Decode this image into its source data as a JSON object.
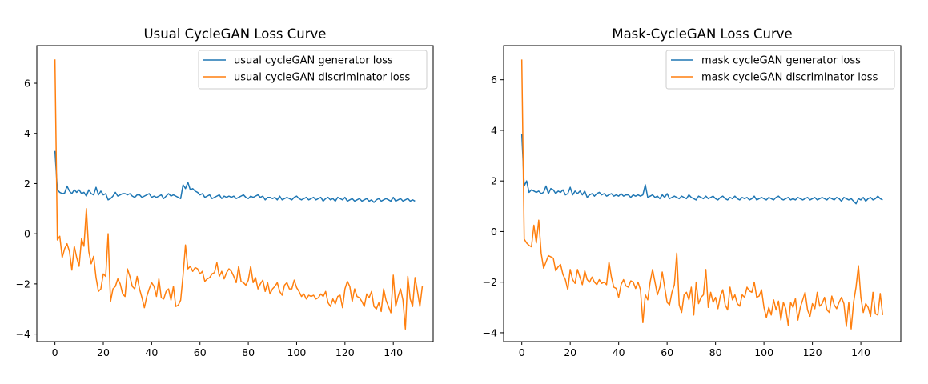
{
  "colors": {
    "generator": "#1f77b4",
    "discriminator": "#ff7f0e"
  },
  "chart_data": [
    {
      "type": "line",
      "title": "Usual CycleGAN Loss Curve",
      "xlabel": "",
      "ylabel": "",
      "xlim": [
        -7.5,
        156.5
      ],
      "ylim": [
        -4.3,
        7.5
      ],
      "xticks": [
        0,
        20,
        40,
        60,
        80,
        100,
        120,
        140
      ],
      "yticks": [
        -4,
        -2,
        0,
        2,
        4,
        6
      ],
      "legend_position": "top-right",
      "series": [
        {
          "name": "usual cycleGAN generator loss",
          "color": "#1f77b4",
          "x_start": 0,
          "values": [
            3.3,
            1.75,
            1.65,
            1.6,
            1.62,
            1.9,
            1.7,
            1.6,
            1.75,
            1.65,
            1.75,
            1.6,
            1.65,
            1.5,
            1.75,
            1.6,
            1.55,
            1.85,
            1.55,
            1.7,
            1.55,
            1.6,
            1.35,
            1.4,
            1.5,
            1.65,
            1.5,
            1.55,
            1.6,
            1.6,
            1.55,
            1.6,
            1.5,
            1.45,
            1.55,
            1.55,
            1.45,
            1.5,
            1.55,
            1.6,
            1.45,
            1.5,
            1.45,
            1.5,
            1.55,
            1.4,
            1.5,
            1.6,
            1.5,
            1.55,
            1.5,
            1.45,
            1.4,
            1.95,
            1.8,
            2.05,
            1.75,
            1.8,
            1.7,
            1.65,
            1.55,
            1.6,
            1.45,
            1.5,
            1.55,
            1.4,
            1.45,
            1.5,
            1.55,
            1.4,
            1.5,
            1.45,
            1.5,
            1.45,
            1.5,
            1.4,
            1.45,
            1.5,
            1.55,
            1.45,
            1.4,
            1.5,
            1.45,
            1.5,
            1.55,
            1.45,
            1.5,
            1.35,
            1.45,
            1.45,
            1.4,
            1.45,
            1.35,
            1.5,
            1.35,
            1.4,
            1.45,
            1.4,
            1.35,
            1.45,
            1.5,
            1.4,
            1.35,
            1.4,
            1.45,
            1.35,
            1.4,
            1.45,
            1.35,
            1.4,
            1.45,
            1.3,
            1.4,
            1.45,
            1.35,
            1.4,
            1.3,
            1.45,
            1.4,
            1.35,
            1.45,
            1.3,
            1.35,
            1.4,
            1.3,
            1.35,
            1.4,
            1.3,
            1.35,
            1.4,
            1.3,
            1.35,
            1.25,
            1.35,
            1.4,
            1.3,
            1.35,
            1.4,
            1.35,
            1.3,
            1.45,
            1.3,
            1.35,
            1.4,
            1.3,
            1.35,
            1.4,
            1.3,
            1.35,
            1.3
          ]
        },
        {
          "name": "usual cycleGAN discriminator loss",
          "color": "#ff7f0e",
          "x_start": 0,
          "values": [
            6.95,
            -0.25,
            -0.1,
            -0.95,
            -0.6,
            -0.4,
            -0.7,
            -1.45,
            -0.5,
            -0.95,
            -1.3,
            -0.2,
            -0.5,
            1.0,
            -0.7,
            -1.2,
            -0.9,
            -1.75,
            -2.3,
            -2.2,
            -1.6,
            -1.7,
            0.0,
            -2.7,
            -2.2,
            -2.1,
            -1.8,
            -2.0,
            -2.4,
            -2.5,
            -1.4,
            -1.7,
            -2.1,
            -2.2,
            -1.7,
            -2.2,
            -2.55,
            -2.95,
            -2.5,
            -2.2,
            -1.95,
            -2.1,
            -2.5,
            -1.8,
            -2.55,
            -2.6,
            -2.3,
            -2.2,
            -2.65,
            -2.1,
            -2.9,
            -2.85,
            -2.65,
            -1.65,
            -0.45,
            -1.4,
            -1.3,
            -1.5,
            -1.35,
            -1.4,
            -1.6,
            -1.5,
            -1.9,
            -1.8,
            -1.75,
            -1.6,
            -1.55,
            -1.15,
            -1.7,
            -1.5,
            -1.8,
            -1.55,
            -1.4,
            -1.5,
            -1.7,
            -1.95,
            -1.3,
            -1.9,
            -1.95,
            -2.05,
            -1.85,
            -1.3,
            -1.95,
            -1.75,
            -2.2,
            -2.0,
            -1.85,
            -2.3,
            -1.95,
            -2.4,
            -2.2,
            -2.1,
            -1.95,
            -2.3,
            -2.45,
            -2.05,
            -1.95,
            -2.2,
            -2.2,
            -1.85,
            -2.15,
            -2.3,
            -2.5,
            -2.4,
            -2.6,
            -2.45,
            -2.5,
            -2.45,
            -2.6,
            -2.55,
            -2.4,
            -2.5,
            -2.3,
            -2.75,
            -2.9,
            -2.6,
            -2.8,
            -2.5,
            -2.45,
            -2.95,
            -2.2,
            -1.9,
            -2.1,
            -2.7,
            -2.2,
            -2.5,
            -2.55,
            -2.7,
            -2.9,
            -2.4,
            -2.55,
            -2.3,
            -2.9,
            -3.0,
            -2.75,
            -3.1,
            -2.2,
            -2.65,
            -2.9,
            -3.15,
            -1.65,
            -2.9,
            -2.5,
            -2.2,
            -2.65,
            -3.8,
            -1.7,
            -2.6,
            -2.9,
            -1.75,
            -2.3,
            -2.9,
            -2.1
          ]
        }
      ]
    },
    {
      "type": "line",
      "title": "Mask-CycleGAN Loss Curve",
      "xlabel": "",
      "ylabel": "",
      "xlim": [
        -7.5,
        156.5
      ],
      "ylim": [
        -4.35,
        7.35
      ],
      "xticks": [
        0,
        20,
        40,
        60,
        80,
        100,
        120,
        140
      ],
      "yticks": [
        -4,
        -2,
        0,
        2,
        4,
        6
      ],
      "legend_position": "top-right",
      "series": [
        {
          "name": "mask cycleGAN generator loss",
          "color": "#1f77b4",
          "x_start": 0,
          "values": [
            3.85,
            1.8,
            2.0,
            1.55,
            1.65,
            1.6,
            1.55,
            1.6,
            1.5,
            1.55,
            1.8,
            1.5,
            1.7,
            1.65,
            1.5,
            1.6,
            1.55,
            1.65,
            1.45,
            1.5,
            1.75,
            1.45,
            1.6,
            1.5,
            1.6,
            1.45,
            1.6,
            1.35,
            1.45,
            1.5,
            1.4,
            1.5,
            1.55,
            1.45,
            1.5,
            1.4,
            1.45,
            1.5,
            1.4,
            1.45,
            1.4,
            1.5,
            1.4,
            1.45,
            1.45,
            1.35,
            1.45,
            1.4,
            1.45,
            1.4,
            1.45,
            1.85,
            1.35,
            1.4,
            1.45,
            1.35,
            1.4,
            1.3,
            1.45,
            1.35,
            1.5,
            1.3,
            1.35,
            1.4,
            1.35,
            1.3,
            1.4,
            1.35,
            1.3,
            1.45,
            1.35,
            1.3,
            1.25,
            1.4,
            1.35,
            1.3,
            1.4,
            1.3,
            1.35,
            1.4,
            1.3,
            1.25,
            1.35,
            1.4,
            1.3,
            1.25,
            1.35,
            1.3,
            1.4,
            1.3,
            1.25,
            1.35,
            1.3,
            1.35,
            1.25,
            1.3,
            1.4,
            1.25,
            1.3,
            1.35,
            1.3,
            1.25,
            1.35,
            1.3,
            1.25,
            1.35,
            1.4,
            1.3,
            1.25,
            1.3,
            1.35,
            1.25,
            1.3,
            1.25,
            1.35,
            1.3,
            1.25,
            1.3,
            1.35,
            1.25,
            1.3,
            1.35,
            1.25,
            1.3,
            1.35,
            1.3,
            1.25,
            1.35,
            1.3,
            1.25,
            1.35,
            1.3,
            1.2,
            1.35,
            1.3,
            1.25,
            1.3,
            1.2,
            1.1,
            1.3,
            1.25,
            1.35,
            1.2,
            1.3,
            1.35,
            1.25,
            1.3,
            1.4,
            1.3,
            1.25
          ]
        },
        {
          "name": "mask cycleGAN discriminator loss",
          "color": "#ff7f0e",
          "x_start": 0,
          "values": [
            6.8,
            -0.3,
            -0.45,
            -0.55,
            -0.6,
            0.25,
            -0.45,
            0.45,
            -0.85,
            -1.45,
            -1.2,
            -0.95,
            -1.0,
            -1.05,
            -1.55,
            -1.4,
            -1.3,
            -1.7,
            -1.9,
            -2.3,
            -1.5,
            -1.9,
            -2.05,
            -1.5,
            -1.8,
            -2.1,
            -1.55,
            -1.9,
            -2.0,
            -1.8,
            -2.0,
            -2.1,
            -1.9,
            -2.05,
            -2.0,
            -2.1,
            -1.2,
            -1.8,
            -2.2,
            -2.25,
            -2.6,
            -2.1,
            -1.9,
            -2.15,
            -2.2,
            -1.95,
            -2.0,
            -2.25,
            -2.0,
            -2.3,
            -3.6,
            -2.5,
            -2.7,
            -2.0,
            -1.5,
            -2.0,
            -2.5,
            -2.2,
            -1.6,
            -2.2,
            -2.8,
            -2.9,
            -2.4,
            -2.1,
            -0.85,
            -2.9,
            -3.2,
            -2.5,
            -2.4,
            -2.7,
            -2.2,
            -3.3,
            -2.0,
            -2.85,
            -2.6,
            -2.5,
            -1.5,
            -3.0,
            -2.4,
            -2.8,
            -2.6,
            -3.05,
            -2.55,
            -2.3,
            -2.9,
            -3.1,
            -2.2,
            -2.7,
            -2.5,
            -2.85,
            -2.95,
            -2.5,
            -2.6,
            -2.2,
            -2.35,
            -2.4,
            -2.0,
            -2.6,
            -2.55,
            -2.3,
            -3.0,
            -3.4,
            -3.0,
            -3.3,
            -2.7,
            -3.1,
            -2.75,
            -3.5,
            -2.8,
            -3.05,
            -3.7,
            -2.8,
            -3.0,
            -2.65,
            -3.5,
            -3.0,
            -2.7,
            -2.4,
            -3.1,
            -3.35,
            -2.85,
            -3.05,
            -2.4,
            -2.95,
            -2.85,
            -2.6,
            -3.1,
            -3.2,
            -2.55,
            -2.9,
            -3.05,
            -2.8,
            -2.6,
            -2.85,
            -3.75,
            -2.8,
            -3.85,
            -2.8,
            -2.2,
            -1.35,
            -2.6,
            -3.2,
            -2.85,
            -3.0,
            -3.35,
            -2.4,
            -3.25,
            -3.3,
            -2.45,
            -3.3
          ]
        }
      ]
    }
  ]
}
